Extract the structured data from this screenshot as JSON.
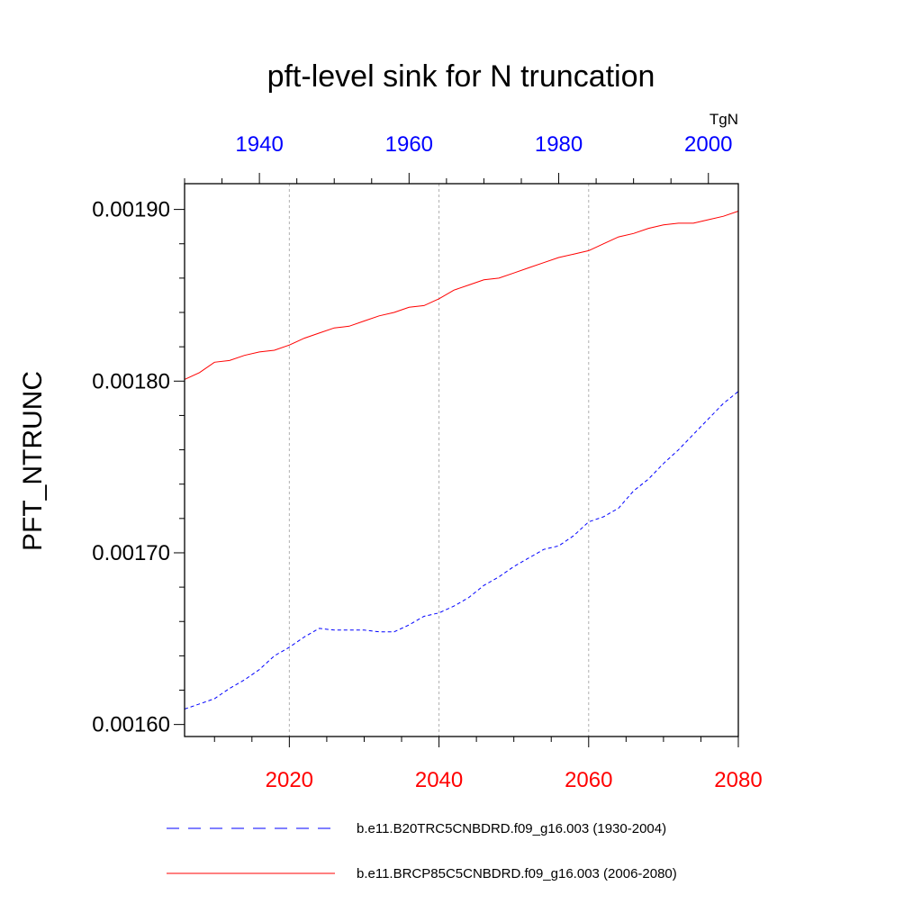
{
  "chart_data": {
    "type": "line",
    "title": "pft-level sink for N truncation",
    "ylabel": "PFT_NTRUNC",
    "units_label": "TgN",
    "ylim": [
      0.001593,
      0.001915
    ],
    "y_ticks": [
      0.0016,
      0.0017,
      0.0018,
      0.0019
    ],
    "y_tick_labels": [
      "0.00160",
      "0.00170",
      "0.00180",
      "0.00190"
    ],
    "grid": "vertical dashed at bottom-axis major ticks",
    "legend_placement": "bottom",
    "x_bottom": {
      "range": [
        2006,
        2080
      ],
      "ticks": [
        2020,
        2040,
        2060,
        2080
      ],
      "color": "#ff0000"
    },
    "x_top": {
      "range": [
        1930,
        2004
      ],
      "ticks": [
        1940,
        1960,
        1980,
        2000
      ],
      "color": "#0000ff"
    },
    "series": [
      {
        "name": "b.e11.B20TRC5CNBDRD.f09_g16.003 (1930-2004)",
        "axis": "top",
        "color": "#0000ff",
        "dash": "dashed",
        "x": [
          1930,
          1932,
          1934,
          1936,
          1938,
          1940,
          1942,
          1944,
          1946,
          1948,
          1950,
          1952,
          1954,
          1956,
          1958,
          1960,
          1962,
          1964,
          1966,
          1968,
          1970,
          1972,
          1974,
          1976,
          1978,
          1980,
          1982,
          1984,
          1986,
          1988,
          1990,
          1992,
          1994,
          1996,
          1998,
          2000,
          2002,
          2004
        ],
        "y": [
          0.001609,
          0.001612,
          0.001615,
          0.001621,
          0.001626,
          0.001632,
          0.00164,
          0.001645,
          0.001651,
          0.001656,
          0.001655,
          0.001655,
          0.001655,
          0.001654,
          0.001654,
          0.001658,
          0.001663,
          0.001665,
          0.001669,
          0.001674,
          0.001681,
          0.001686,
          0.001692,
          0.001697,
          0.001702,
          0.001704,
          0.00171,
          0.001718,
          0.001721,
          0.001726,
          0.001736,
          0.001743,
          0.001752,
          0.00176,
          0.001769,
          0.001778,
          0.001787,
          0.001794
        ]
      },
      {
        "name": "b.e11.BRCP85C5CNBDRD.f09_g16.003 (2006-2080)",
        "axis": "bottom",
        "color": "#ff0000",
        "dash": "solid",
        "x": [
          2006,
          2008,
          2010,
          2012,
          2014,
          2016,
          2018,
          2020,
          2022,
          2024,
          2026,
          2028,
          2030,
          2032,
          2034,
          2036,
          2038,
          2040,
          2042,
          2044,
          2046,
          2048,
          2050,
          2052,
          2054,
          2056,
          2058,
          2060,
          2062,
          2064,
          2066,
          2068,
          2070,
          2072,
          2074,
          2076,
          2078,
          2080
        ],
        "y": [
          0.001801,
          0.001805,
          0.001811,
          0.001812,
          0.001815,
          0.001817,
          0.001818,
          0.001821,
          0.001825,
          0.001828,
          0.001831,
          0.001832,
          0.001835,
          0.001838,
          0.00184,
          0.001843,
          0.001844,
          0.001848,
          0.001853,
          0.001856,
          0.001859,
          0.00186,
          0.001863,
          0.001866,
          0.001869,
          0.001872,
          0.001874,
          0.001876,
          0.00188,
          0.001884,
          0.001886,
          0.001889,
          0.001891,
          0.001892,
          0.001892,
          0.001894,
          0.001896,
          0.001899
        ]
      }
    ]
  }
}
